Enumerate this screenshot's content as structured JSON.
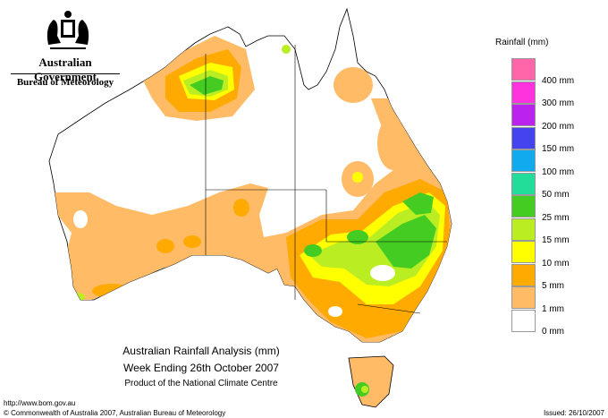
{
  "logo": {
    "government": "Australian Government",
    "bureau": "Bureau of Meteorology"
  },
  "legend": {
    "title": "Rainfall (mm)",
    "items": [
      {
        "label": "",
        "color": "#ff66aa"
      },
      {
        "label": "400 mm",
        "color": "#ff33dd"
      },
      {
        "label": "300 mm",
        "color": "#bb22ee"
      },
      {
        "label": "200 mm",
        "color": "#4444ee"
      },
      {
        "label": "150 mm",
        "color": "#11aaee"
      },
      {
        "label": "100 mm",
        "color": "#22dd99"
      },
      {
        "label": "50 mm",
        "color": "#44cc22"
      },
      {
        "label": "25 mm",
        "color": "#bbee22"
      },
      {
        "label": "15 mm",
        "color": "#ffff00"
      },
      {
        "label": "10 mm",
        "color": "#ffaa00"
      },
      {
        "label": "5 mm",
        "color": "#ffbb66"
      },
      {
        "label": "1 mm",
        "color": "#ffffff"
      },
      {
        "label": "0 mm",
        "color": ""
      }
    ]
  },
  "caption": {
    "title": "Australian Rainfall Analysis (mm)",
    "period": "Week Ending 26th October 2007",
    "product": "Product of the National Climate Centre"
  },
  "footer": {
    "url": "http://www.bom.gov.au",
    "copyright": "© Commonwealth of Australia 2007, Australian Bureau of Meteorology",
    "issued": "Issued: 26/10/2007"
  }
}
